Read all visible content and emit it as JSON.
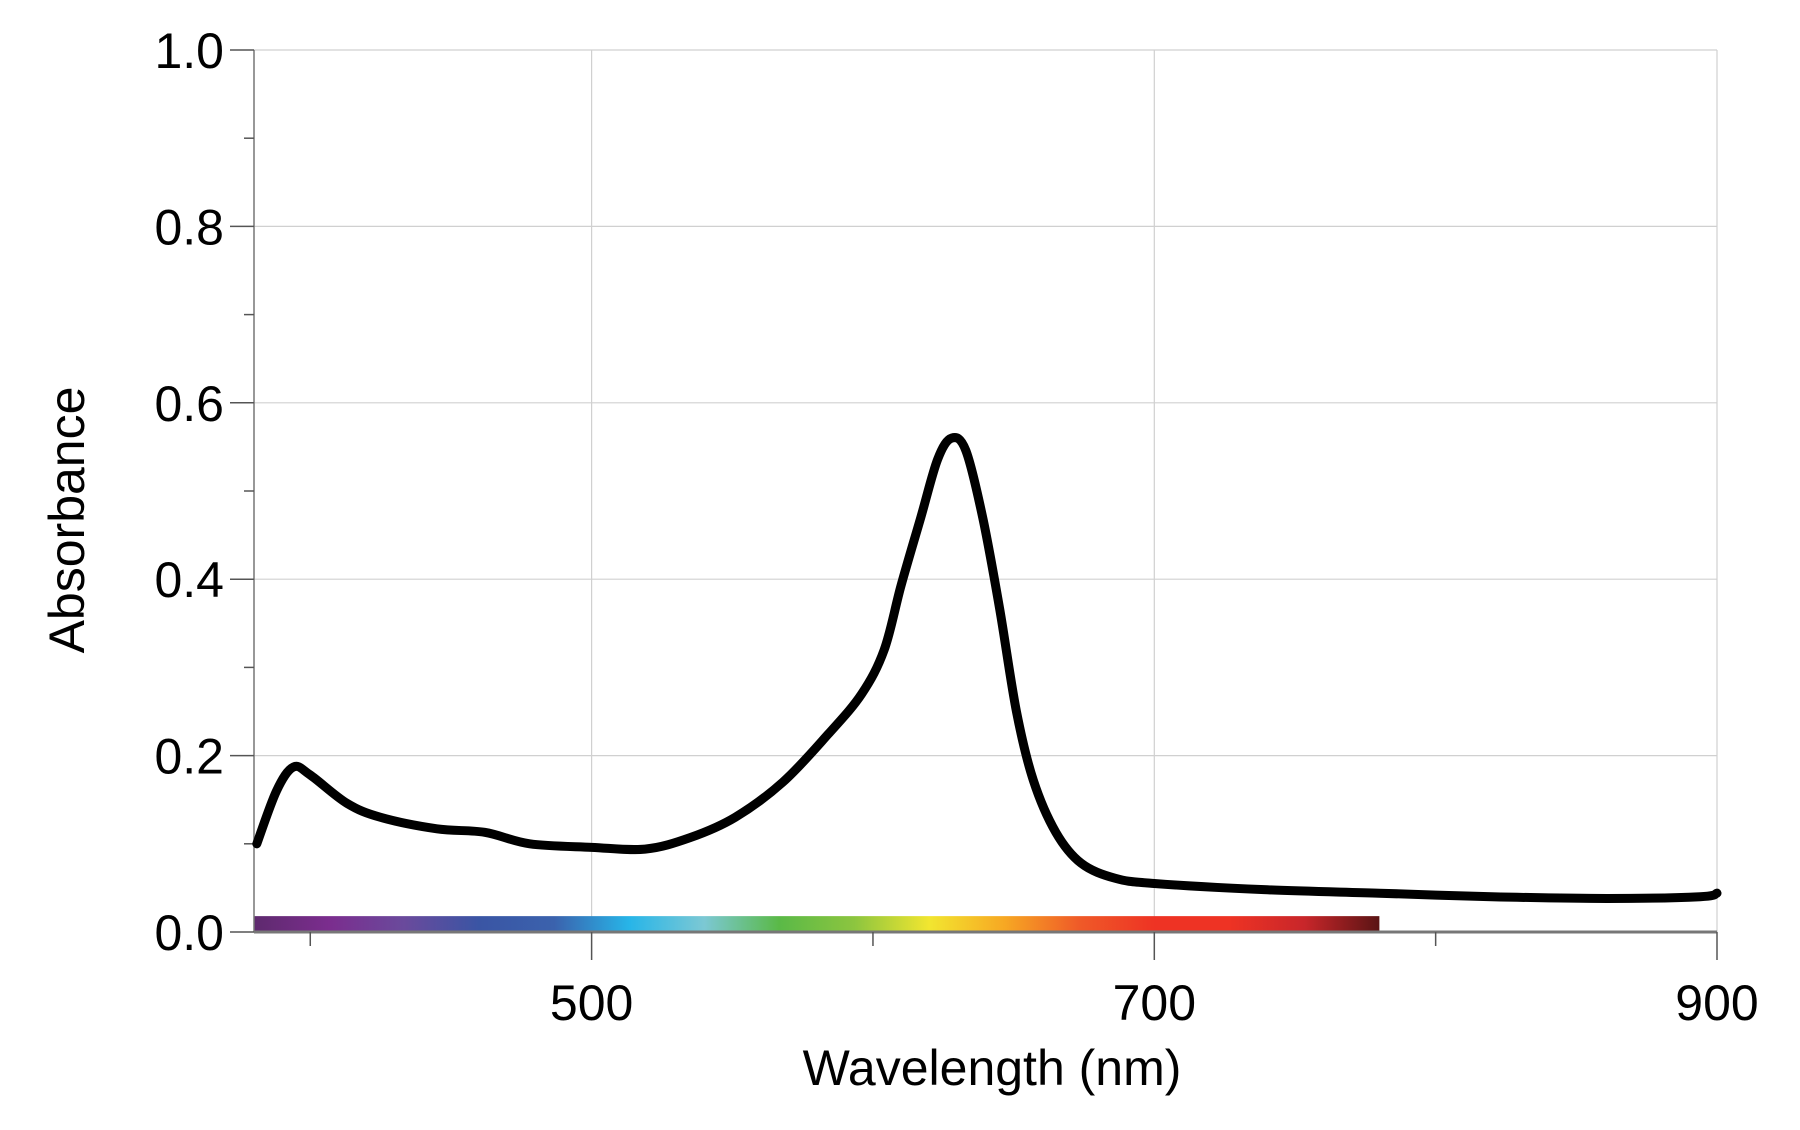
{
  "chart_data": {
    "type": "line",
    "title": "",
    "xlabel": "Wavelength (nm)",
    "ylabel": "Absorbance",
    "xlim": [
      380,
      900
    ],
    "ylim": [
      0.0,
      1.0
    ],
    "x_ticks": [
      500,
      700,
      900
    ],
    "x_tick_labels": [
      "500",
      "700",
      "900"
    ],
    "x_minor_ticks": [
      400,
      600,
      800
    ],
    "y_ticks": [
      0.0,
      0.2,
      0.4,
      0.6,
      0.8,
      1.0
    ],
    "y_tick_labels": [
      "0.0",
      "0.2",
      "0.4",
      "0.6",
      "0.8",
      "1.0"
    ],
    "y_minor_ticks": [
      0.1,
      0.3,
      0.5,
      0.7,
      0.9
    ],
    "grid": true,
    "line_color": "#000000",
    "spectrum_bar": {
      "range_nm": [
        380,
        780
      ],
      "height_absorbance": 0.018,
      "colors": [
        "#5e2a6e",
        "#7b2d8e",
        "#6a4a9c",
        "#3a55a4",
        "#3b62ad",
        "#27b5e8",
        "#7cc8d4",
        "#5ab947",
        "#8cc53f",
        "#f2e630",
        "#f7a823",
        "#ef5a28",
        "#ee3324",
        "#ee3324",
        "#c8262a",
        "#5a1414"
      ]
    },
    "series": [
      {
        "x": [
          381,
          388,
          394,
          400,
          413,
          425,
          445,
          462,
          478,
          500,
          519,
          535,
          551,
          568,
          584,
          596,
          604,
          610,
          617,
          623,
          628,
          633,
          639,
          645,
          651,
          657,
          665,
          674,
          686,
          700,
          739,
          780,
          820,
          861,
          894,
          900
        ],
        "y": [
          0.1,
          0.16,
          0.187,
          0.178,
          0.146,
          0.13,
          0.117,
          0.113,
          0.1,
          0.096,
          0.094,
          0.107,
          0.13,
          0.17,
          0.224,
          0.27,
          0.32,
          0.393,
          0.47,
          0.536,
          0.56,
          0.546,
          0.47,
          0.367,
          0.25,
          0.172,
          0.113,
          0.078,
          0.061,
          0.055,
          0.048,
          0.044,
          0.04,
          0.038,
          0.04,
          0.044
        ]
      }
    ]
  }
}
